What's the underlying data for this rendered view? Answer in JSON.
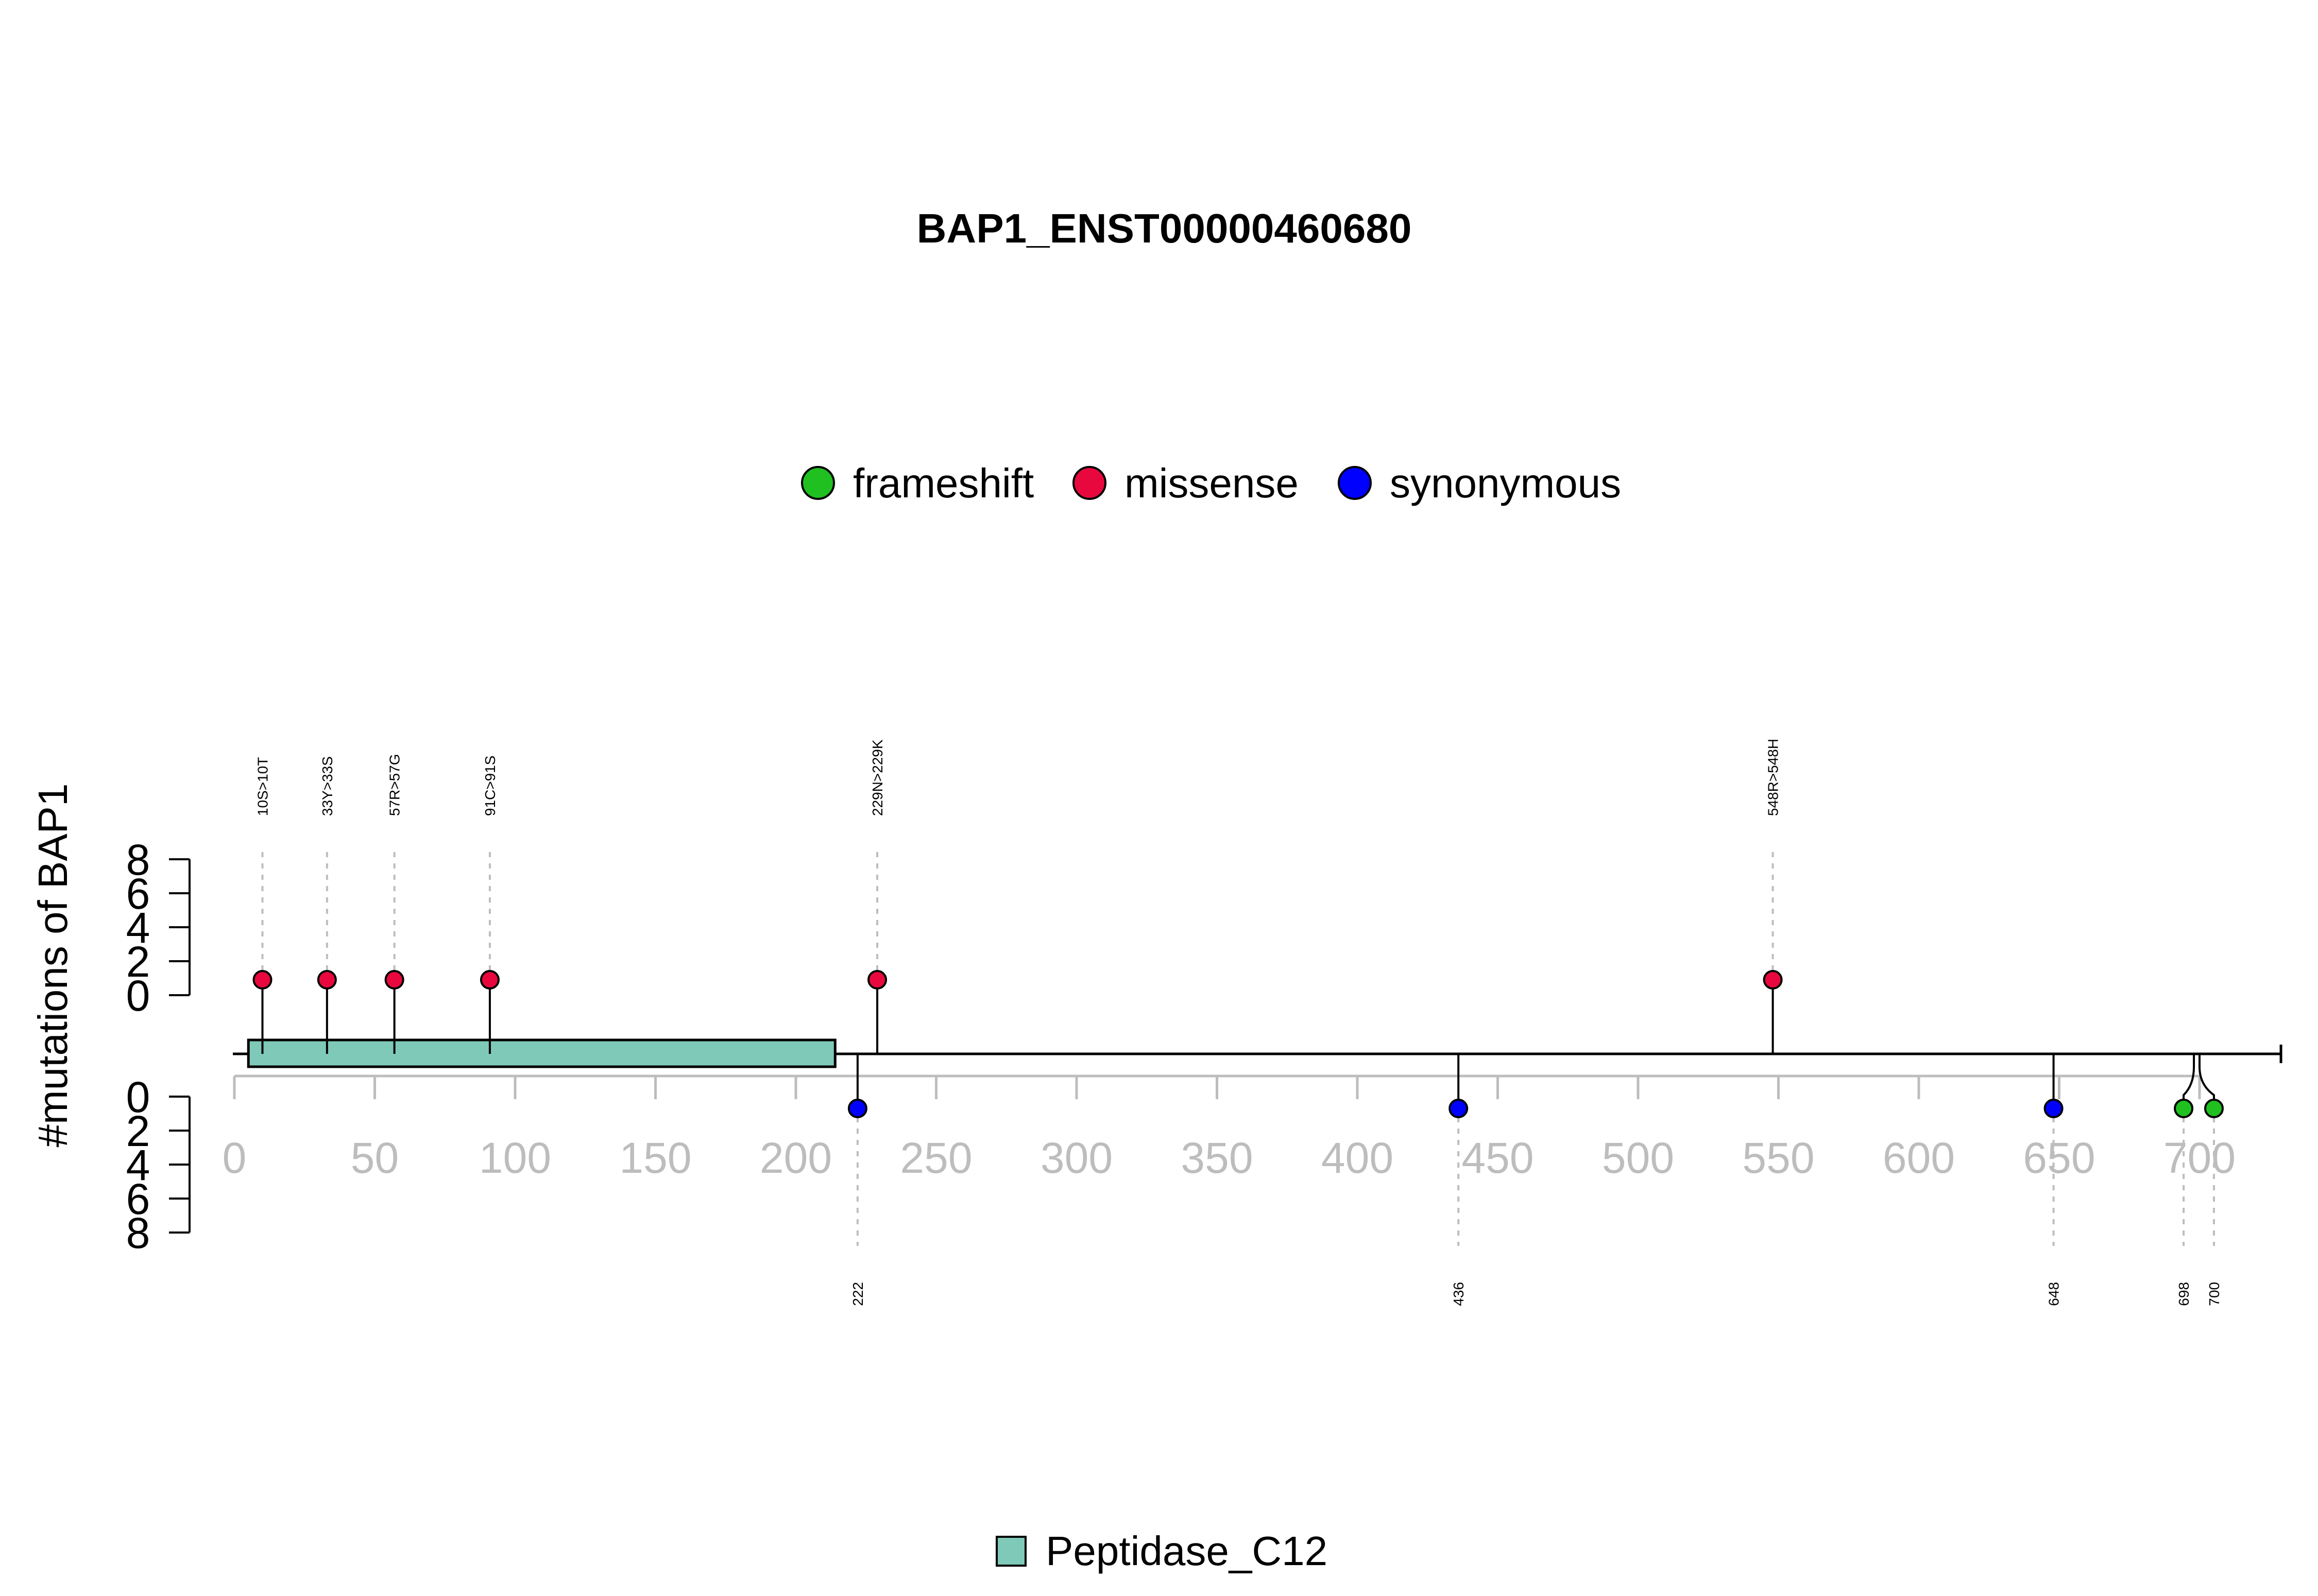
{
  "chart_data": {
    "type": "lollipop",
    "title": "BAP1_ENST00000460680",
    "ylabel": "#mutations of BAP1",
    "protein_length": 729,
    "xlim": [
      0,
      729
    ],
    "xticks": [
      0,
      50,
      100,
      150,
      200,
      250,
      300,
      350,
      400,
      450,
      500,
      550,
      600,
      650,
      700
    ],
    "yticks_top": [
      0,
      2,
      4,
      6,
      8
    ],
    "yticks_bottom": [
      0,
      2,
      4,
      6,
      8
    ],
    "ylim": [
      0,
      8
    ],
    "grid": false,
    "legend_position": "top",
    "legend": [
      {
        "label": "frameshift",
        "color": "#1fc01f"
      },
      {
        "label": "missense",
        "color": "#e8083e"
      },
      {
        "label": "synonymous",
        "color": "#0000ff"
      }
    ],
    "domains": [
      {
        "name": "Peptidase_C12",
        "start": 5,
        "end": 214,
        "color": "#7fc9b8"
      }
    ],
    "domain_legend_position": "bottom",
    "mutations_top": [
      {
        "position": 10,
        "label": "10S>10T",
        "count": 1,
        "type": "missense",
        "color": "#e8083e"
      },
      {
        "position": 33,
        "label": "33Y>33S",
        "count": 1,
        "type": "missense",
        "color": "#e8083e"
      },
      {
        "position": 57,
        "label": "57R>57G",
        "count": 1,
        "type": "missense",
        "color": "#e8083e"
      },
      {
        "position": 91,
        "label": "91C>91S",
        "count": 1,
        "type": "missense",
        "color": "#e8083e"
      },
      {
        "position": 229,
        "label": "229N>229K",
        "count": 1,
        "type": "missense",
        "color": "#e8083e"
      },
      {
        "position": 548,
        "label": "548R>548H",
        "count": 1,
        "type": "missense",
        "color": "#e8083e"
      }
    ],
    "mutations_bottom": [
      {
        "position": 222,
        "label": "222",
        "count": 1,
        "type": "synonymous",
        "color": "#0000ff"
      },
      {
        "position": 436,
        "label": "436",
        "count": 1,
        "type": "synonymous",
        "color": "#0000ff"
      },
      {
        "position": 648,
        "label": "648",
        "count": 1,
        "type": "synonymous",
        "color": "#0000ff"
      },
      {
        "position": 698,
        "label": "698",
        "count": 1,
        "type": "frameshift",
        "color": "#1fc01f"
      },
      {
        "position": 700,
        "label": "700",
        "count": 1,
        "type": "frameshift",
        "color": "#1fc01f"
      }
    ]
  }
}
